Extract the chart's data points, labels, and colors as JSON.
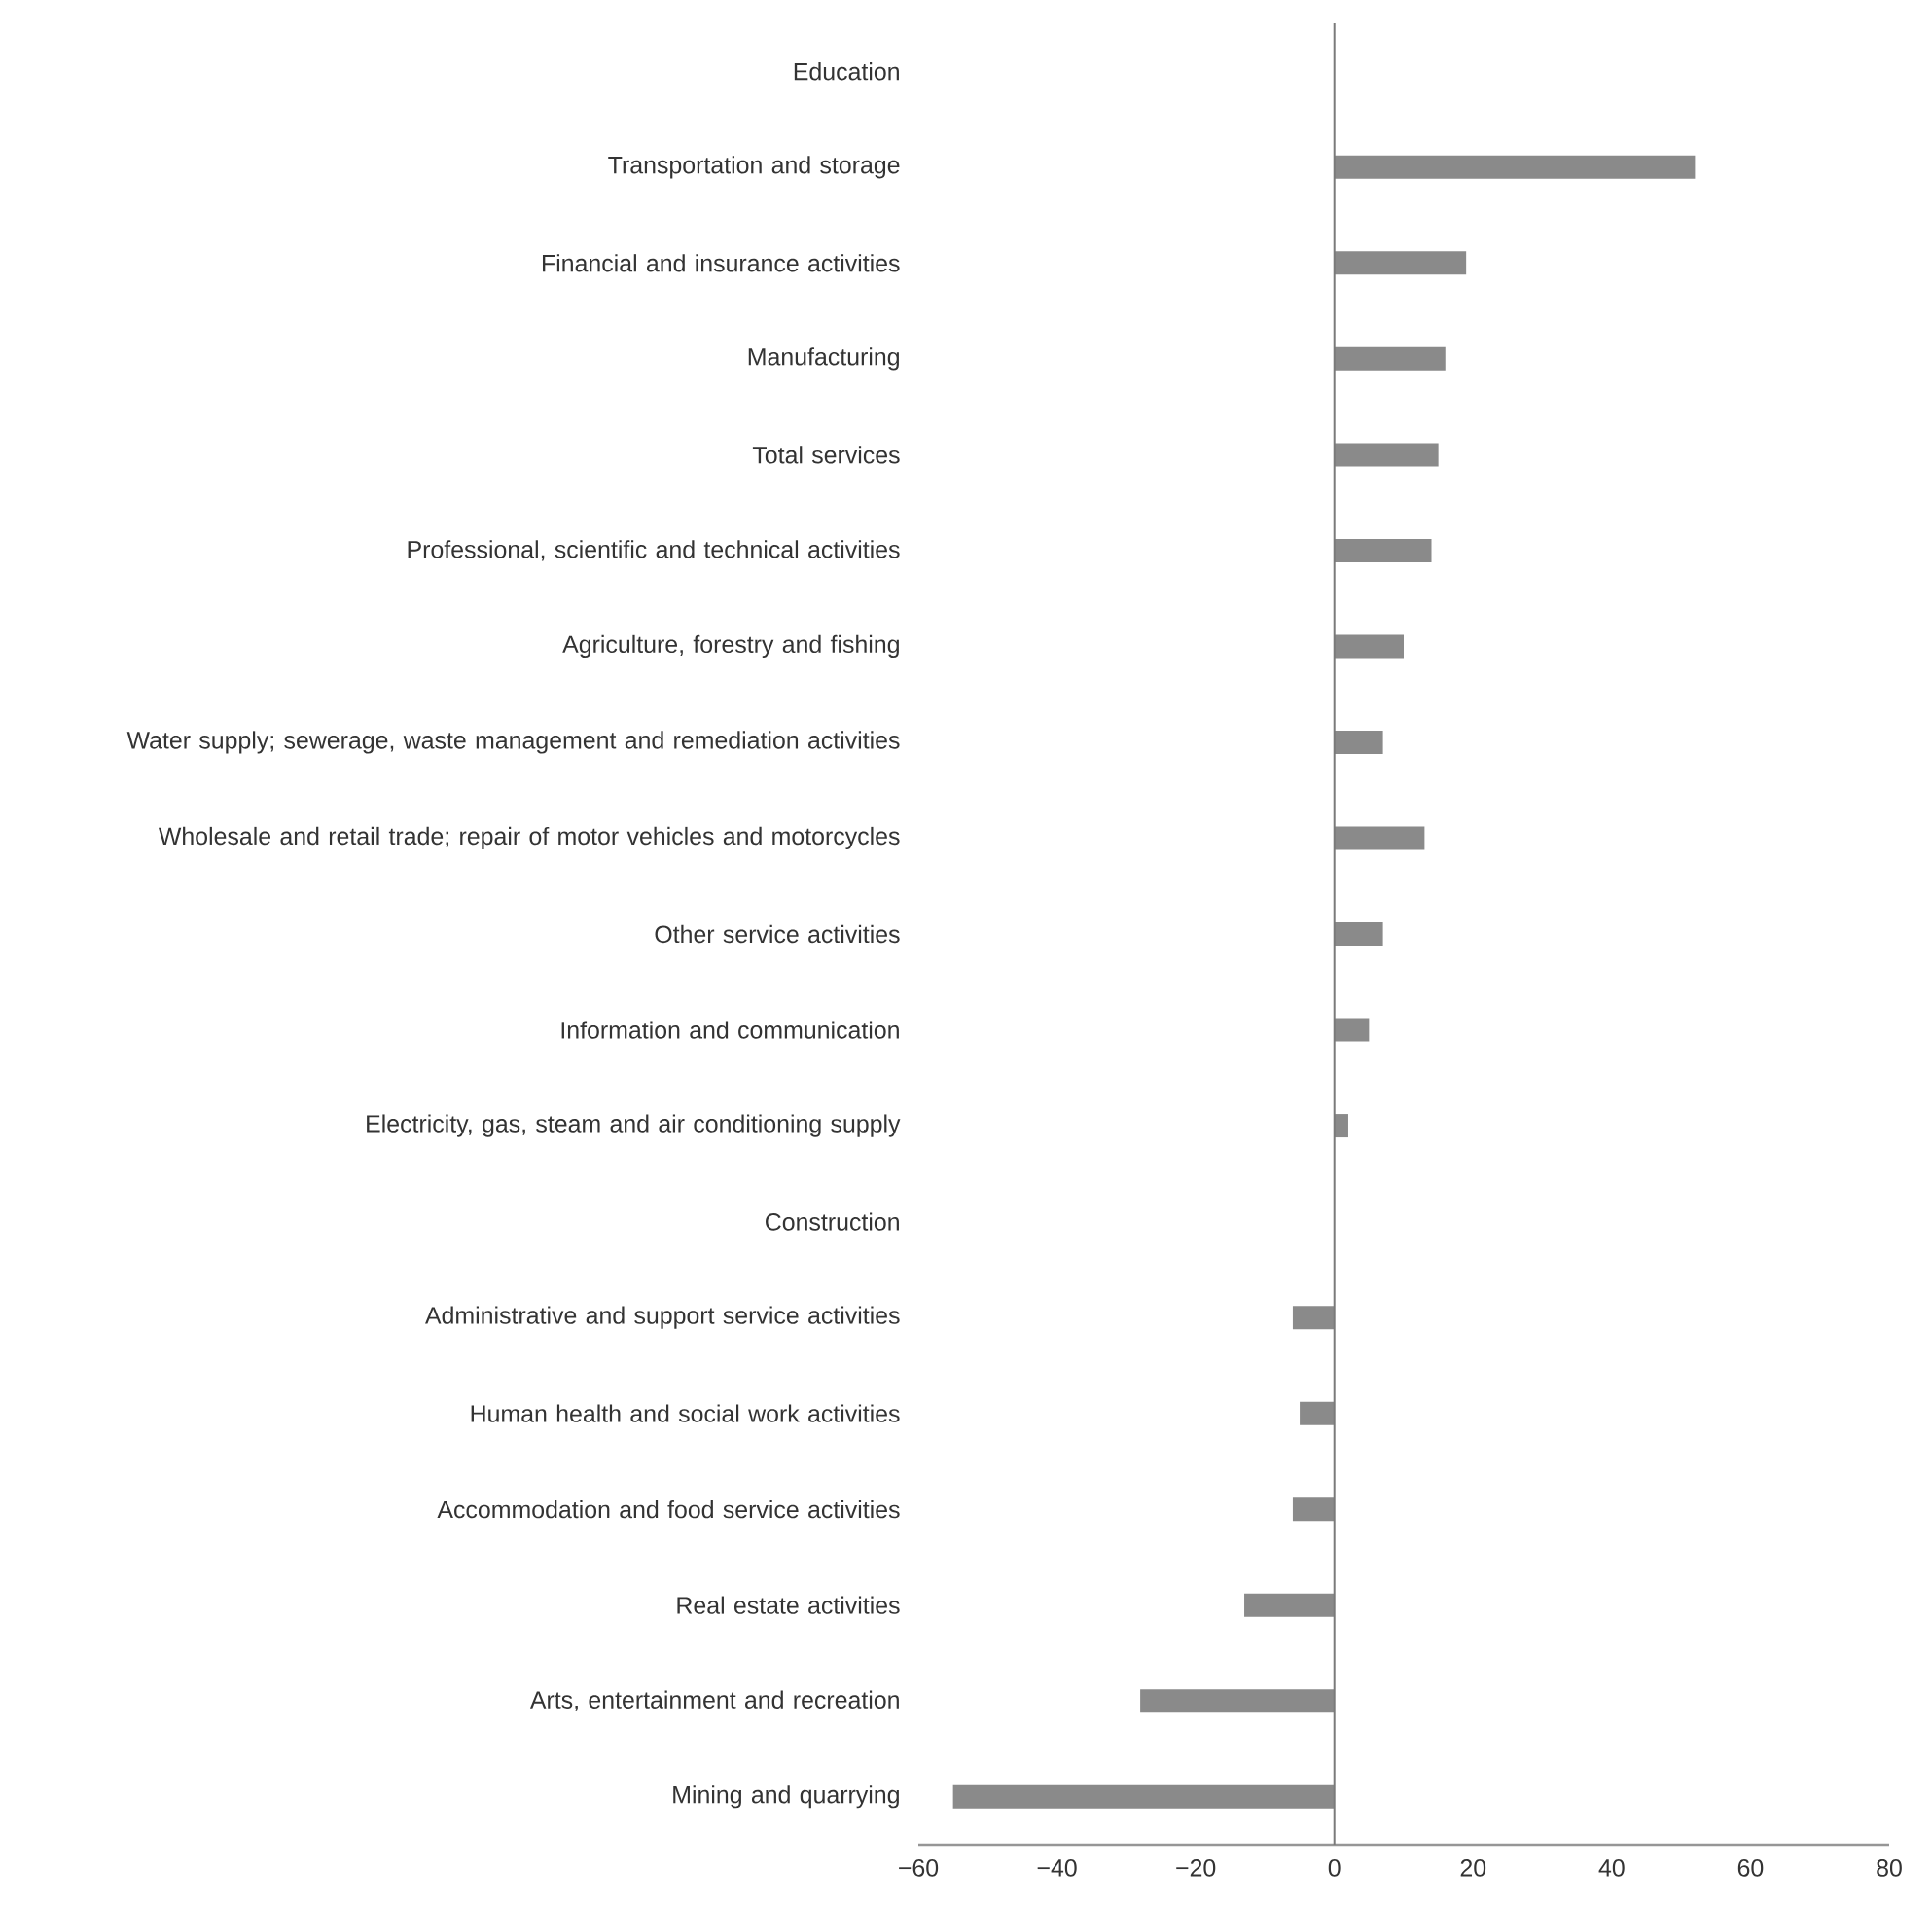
{
  "chart_data": {
    "type": "bar",
    "orientation": "horizontal",
    "categories": [
      "Education",
      "Transportation and storage",
      "Financial and insurance activities",
      "Manufacturing",
      "Total services",
      "Professional, scientific and technical activities",
      "Agriculture, forestry and fishing",
      "Water supply; sewerage, waste management and remediation activities",
      "Wholesale and retail trade; repair of motor vehicles and motorcycles",
      "Other service activities",
      "Information and communication",
      "Electricity, gas, steam and air conditioning supply",
      "Construction",
      "Administrative and support service activities",
      "Human health and social work activities",
      "Accommodation and food service activities",
      "Real estate activities",
      "Arts, entertainment and recreation",
      "Mining and quarrying"
    ],
    "values": [
      0,
      52,
      19,
      16,
      15,
      14,
      10,
      7,
      13,
      7,
      5,
      2,
      0,
      -6,
      -5,
      -6,
      -13,
      -28,
      -55
    ],
    "color": "#8a8a8a",
    "xlim": [
      -60,
      80
    ],
    "xticks": [
      {
        "value": -60,
        "label": "−60"
      },
      {
        "value": -40,
        "label": "−40"
      },
      {
        "value": -20,
        "label": "−20"
      },
      0,
      20,
      40,
      60,
      80
    ],
    "ref_lines": [
      {
        "axis": "x",
        "value": 0,
        "color": "#7a7a7a"
      }
    ],
    "grid": false
  }
}
